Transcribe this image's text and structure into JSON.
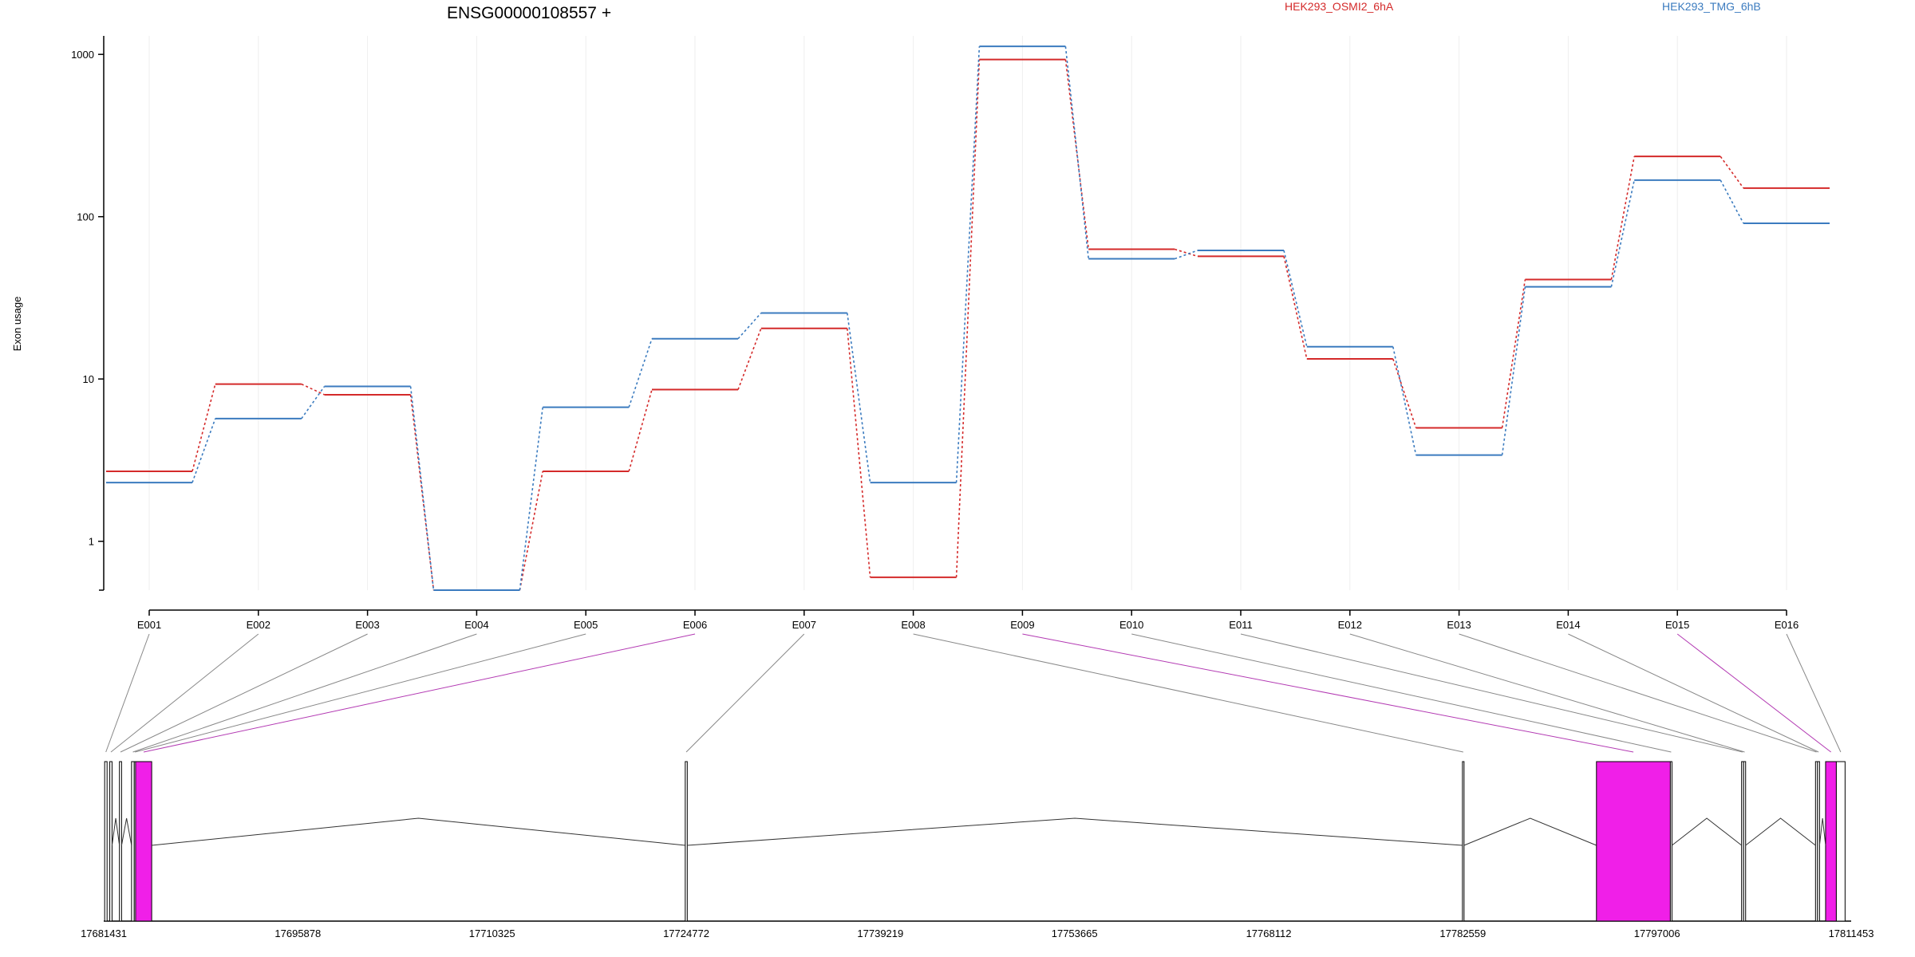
{
  "chart_data": {
    "type": "line",
    "title": "ENSG00000108557 +",
    "ylabel": "Exon usage",
    "y_scale": "log",
    "yticks": [
      1,
      10,
      100,
      1000
    ],
    "ytick_labels": [
      "1",
      "10",
      "100",
      "1000"
    ],
    "ylim": [
      0.5,
      1300
    ],
    "grid": "vertical",
    "categories": [
      "E001",
      "E002",
      "E003",
      "E004",
      "E005",
      "E006",
      "E007",
      "E008",
      "E009",
      "E010",
      "E011",
      "E012",
      "E013",
      "E014",
      "E015",
      "E016"
    ],
    "series": [
      {
        "name": "HEK293_OSMI2_6hA",
        "color": "#d42a2a",
        "values": [
          2.7,
          9.3,
          8.0,
          0.5,
          2.7,
          8.6,
          20.5,
          0.6,
          930,
          63,
          57,
          13.3,
          5.0,
          41,
          235,
          150
        ]
      },
      {
        "name": "HEK293_TMG_6hB",
        "color": "#3b7bbf",
        "values": [
          2.3,
          5.7,
          9.0,
          0.5,
          6.7,
          17.7,
          25.5,
          2.3,
          1120,
          55,
          62,
          15.8,
          3.4,
          37,
          168,
          91
        ]
      }
    ],
    "legend_position": "top",
    "genome": {
      "coordinate_labels": [
        "17681431",
        "17695878",
        "17710325",
        "17724772",
        "17739219",
        "17753665",
        "17768112",
        "17782559",
        "17797006",
        "17811453"
      ],
      "coord_range": [
        17681431,
        17811453
      ],
      "highlight_color": "#f01fe8",
      "exons": [
        {
          "id": "E001",
          "start": 17681500,
          "end": 17681680,
          "highlight": false
        },
        {
          "id": "E002",
          "start": 17681880,
          "end": 17682050,
          "highlight": false
        },
        {
          "id": "E003",
          "start": 17682600,
          "end": 17682760,
          "highlight": false
        },
        {
          "id": "E004",
          "start": 17683500,
          "end": 17683700,
          "highlight": false
        },
        {
          "id": "E005",
          "start": 17683700,
          "end": 17683800,
          "highlight": false
        },
        {
          "id": "E006",
          "start": 17683800,
          "end": 17685000,
          "highlight": true
        },
        {
          "id": "E007",
          "start": 17724700,
          "end": 17724850,
          "highlight": false
        },
        {
          "id": "E008",
          "start": 17782530,
          "end": 17782620,
          "highlight": false
        },
        {
          "id": "E009",
          "start": 17792500,
          "end": 17798000,
          "highlight": true
        },
        {
          "id": "E010",
          "start": 17798000,
          "end": 17798120,
          "highlight": false
        },
        {
          "id": "E011",
          "start": 17803300,
          "end": 17803450,
          "highlight": false
        },
        {
          "id": "E012",
          "start": 17803450,
          "end": 17803600,
          "highlight": false
        },
        {
          "id": "E013",
          "start": 17808800,
          "end": 17808950,
          "highlight": false
        },
        {
          "id": "E014",
          "start": 17808950,
          "end": 17809100,
          "highlight": false
        },
        {
          "id": "E015",
          "start": 17809550,
          "end": 17810350,
          "highlight": true
        },
        {
          "id": "E016",
          "start": 17810350,
          "end": 17811000,
          "highlight": false
        }
      ]
    }
  }
}
